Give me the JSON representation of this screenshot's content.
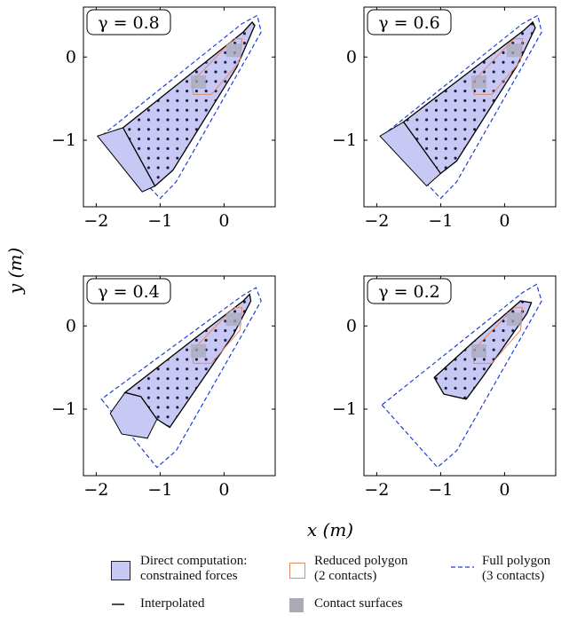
{
  "chart_data": [
    {
      "type": "area",
      "annotation": "γ = 0.8",
      "xlim": [
        -2.2,
        0.8
      ],
      "ylim": [
        -1.8,
        0.6
      ],
      "xticks": [
        -2,
        -1,
        0
      ],
      "yticks": [
        -1,
        0
      ],
      "direct": [
        [
          -1.98,
          -0.95
        ],
        [
          -1.28,
          -1.62
        ],
        [
          -1.08,
          -1.55
        ],
        [
          -1.58,
          -0.85
        ]
      ],
      "interpolated": [
        [
          -1.58,
          -0.85
        ],
        [
          0.3,
          0.3
        ],
        [
          0.44,
          0.42
        ],
        [
          0.48,
          0.38
        ],
        [
          0.2,
          -0.12
        ],
        [
          -0.8,
          -1.36
        ],
        [
          -1.08,
          -1.55
        ]
      ],
      "full_polygon": [
        [
          -1.92,
          -0.95
        ],
        [
          -1.0,
          -1.7
        ],
        [
          -0.75,
          -1.5
        ],
        [
          0.25,
          -0.15
        ],
        [
          0.58,
          0.3
        ],
        [
          0.52,
          0.5
        ],
        [
          0.28,
          0.4
        ]
      ],
      "reduced_polygon": [
        [
          -0.5,
          -0.3
        ],
        [
          0.15,
          0.22
        ],
        [
          0.28,
          0.22
        ],
        [
          0.25,
          -0.05
        ],
        [
          -0.2,
          -0.45
        ],
        [
          -0.48,
          -0.45
        ]
      ],
      "contact_surfaces": [
        [
          -0.4,
          -0.3
        ],
        [
          0.15,
          0.08
        ]
      ]
    },
    {
      "type": "area",
      "annotation": "γ = 0.6",
      "xlim": [
        -2.2,
        0.8
      ],
      "ylim": [
        -1.8,
        0.6
      ],
      "xticks": [
        -2,
        -1,
        0
      ],
      "yticks": [
        -1,
        0
      ],
      "direct": [
        [
          -1.95,
          -0.95
        ],
        [
          -1.22,
          -1.55
        ],
        [
          -1.0,
          -1.4
        ],
        [
          -1.58,
          -0.78
        ]
      ],
      "interpolated": [
        [
          -1.58,
          -0.78
        ],
        [
          0.3,
          0.32
        ],
        [
          0.44,
          0.42
        ],
        [
          0.48,
          0.35
        ],
        [
          0.2,
          -0.1
        ],
        [
          -0.75,
          -1.25
        ],
        [
          -1.0,
          -1.4
        ]
      ],
      "full_polygon": [
        [
          -1.92,
          -0.95
        ],
        [
          -1.0,
          -1.7
        ],
        [
          -0.75,
          -1.5
        ],
        [
          0.25,
          -0.15
        ],
        [
          0.58,
          0.3
        ],
        [
          0.52,
          0.5
        ],
        [
          0.28,
          0.4
        ]
      ],
      "reduced_polygon": [
        [
          -0.5,
          -0.3
        ],
        [
          0.15,
          0.22
        ],
        [
          0.28,
          0.22
        ],
        [
          0.25,
          -0.05
        ],
        [
          -0.2,
          -0.45
        ],
        [
          -0.48,
          -0.45
        ]
      ],
      "contact_surfaces": [
        [
          -0.4,
          -0.3
        ],
        [
          0.15,
          0.08
        ]
      ]
    },
    {
      "type": "area",
      "annotation": "γ = 0.4",
      "xlim": [
        -2.2,
        0.8
      ],
      "ylim": [
        -1.8,
        0.6
      ],
      "xticks": [
        -2,
        -1,
        0
      ],
      "yticks": [
        -1,
        0
      ],
      "direct": [
        [
          -1.55,
          -0.8
        ],
        [
          -1.78,
          -1.05
        ],
        [
          -1.6,
          -1.3
        ],
        [
          -1.2,
          -1.35
        ],
        [
          -1.05,
          -1.12
        ],
        [
          -1.3,
          -0.85
        ]
      ],
      "interpolated": [
        [
          -1.3,
          -0.85
        ],
        [
          -1.55,
          -0.8
        ],
        [
          0.3,
          0.3
        ],
        [
          0.4,
          0.38
        ],
        [
          0.42,
          0.3
        ],
        [
          0.15,
          -0.1
        ],
        [
          -0.85,
          -1.22
        ],
        [
          -1.05,
          -1.12
        ]
      ],
      "full_polygon": [
        [
          -1.92,
          -0.88
        ],
        [
          -1.05,
          -1.7
        ],
        [
          -0.75,
          -1.5
        ],
        [
          0.25,
          -0.15
        ],
        [
          0.58,
          0.3
        ],
        [
          0.5,
          0.46
        ],
        [
          0.28,
          0.36
        ]
      ],
      "reduced_polygon": [
        [
          -0.5,
          -0.3
        ],
        [
          0.15,
          0.22
        ],
        [
          0.28,
          0.22
        ],
        [
          0.25,
          -0.05
        ],
        [
          -0.2,
          -0.45
        ],
        [
          -0.48,
          -0.45
        ]
      ],
      "contact_surfaces": [
        [
          -0.4,
          -0.3
        ],
        [
          0.15,
          0.08
        ]
      ]
    },
    {
      "type": "area",
      "annotation": "γ = 0.2",
      "xlim": [
        -2.2,
        0.8
      ],
      "ylim": [
        -1.8,
        0.6
      ],
      "xticks": [
        -2,
        -1,
        0
      ],
      "yticks": [
        -1,
        0
      ],
      "direct": [
        [
          -1.1,
          -0.62
        ],
        [
          -0.95,
          -0.82
        ],
        [
          -0.6,
          -0.88
        ],
        [
          -0.35,
          -0.62
        ],
        [
          0.35,
          0.15
        ],
        [
          0.42,
          0.28
        ],
        [
          0.25,
          0.3
        ],
        [
          -0.5,
          -0.2
        ]
      ],
      "interpolated": [
        [
          -1.1,
          -0.62
        ],
        [
          -0.5,
          -0.2
        ],
        [
          0.25,
          0.3
        ],
        [
          0.42,
          0.28
        ],
        [
          0.35,
          0.15
        ],
        [
          -0.35,
          -0.62
        ],
        [
          -0.6,
          -0.88
        ],
        [
          -0.95,
          -0.82
        ]
      ],
      "full_polygon": [
        [
          -1.92,
          -0.95
        ],
        [
          -1.05,
          -1.7
        ],
        [
          -0.75,
          -1.5
        ],
        [
          0.25,
          -0.15
        ],
        [
          0.58,
          0.3
        ],
        [
          0.5,
          0.5
        ],
        [
          0.28,
          0.4
        ]
      ],
      "reduced_polygon": [
        [
          -0.5,
          -0.3
        ],
        [
          0.15,
          0.22
        ],
        [
          0.28,
          0.22
        ],
        [
          0.25,
          -0.05
        ],
        [
          -0.2,
          -0.45
        ],
        [
          -0.48,
          -0.45
        ]
      ],
      "contact_surfaces": [
        [
          -0.4,
          -0.3
        ],
        [
          0.15,
          0.08
        ]
      ]
    }
  ],
  "axes": {
    "xlabel": "x (m)",
    "ylabel": "y (m)",
    "tick_labels": {
      "-2": "−2",
      "-1": "−1",
      "0": "0"
    }
  },
  "legend": {
    "direct": "Direct computation:",
    "direct_line2": "constrained forces",
    "reduced": "Reduced polygon",
    "reduced_line2": "(2 contacts)",
    "full": "Full polygon",
    "full_line2": "(3 contacts)",
    "interpolated": "Interpolated",
    "contact": "Contact surfaces"
  },
  "colors": {
    "direct_fill": "#c8c8f5",
    "interp_line": "#000000",
    "full_line": "#1f3fd6",
    "reduced_line": "#e08a6c",
    "contact": "#a9a9b8",
    "dots": "#1a1a3a"
  }
}
